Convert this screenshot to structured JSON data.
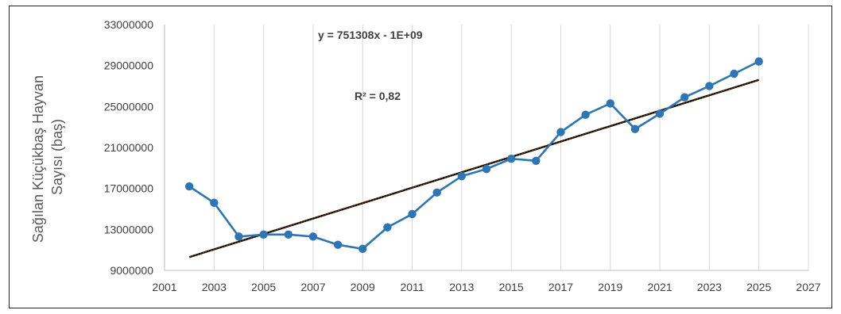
{
  "chart_data": {
    "type": "scatter",
    "ylabel_lines": [
      "Sağılan Küçükbaş Hayvan",
      "Sayısı (baş)"
    ],
    "xlabel": "",
    "xlim": [
      2001,
      2027
    ],
    "ylim": [
      9000000,
      33000000
    ],
    "x_ticks": [
      "2001",
      "2003",
      "2005",
      "2007",
      "2009",
      "2011",
      "2013",
      "2015",
      "2017",
      "2019",
      "2021",
      "2023",
      "2025",
      "2027"
    ],
    "y_ticks": [
      "9000000",
      "13000000",
      "17000000",
      "21000000",
      "25000000",
      "29000000",
      "33000000"
    ],
    "grid": "vertical",
    "series": [
      {
        "color": "#2E75B6",
        "x": [
          2002,
          2003,
          2004,
          2005,
          2006,
          2007,
          2008,
          2009,
          2010,
          2011,
          2012,
          2013,
          2014,
          2015,
          2016,
          2017,
          2018,
          2019,
          2020,
          2021,
          2022,
          2023,
          2024,
          2025
        ],
        "y": [
          17200000,
          15600000,
          12300000,
          12500000,
          12500000,
          12300000,
          11500000,
          11100000,
          13200000,
          14500000,
          16600000,
          18200000,
          18900000,
          19900000,
          19700000,
          22500000,
          24200000,
          25300000,
          22800000,
          24300000,
          25900000,
          27000000,
          28200000,
          29400000
        ]
      }
    ],
    "trendline": {
      "color": "#7B3F00",
      "x": [
        2002,
        2025
      ],
      "y": [
        10300000,
        27600000
      ],
      "equation": "y = 751308x  - 1E+09",
      "r_squared": "R² = 0,82"
    }
  }
}
